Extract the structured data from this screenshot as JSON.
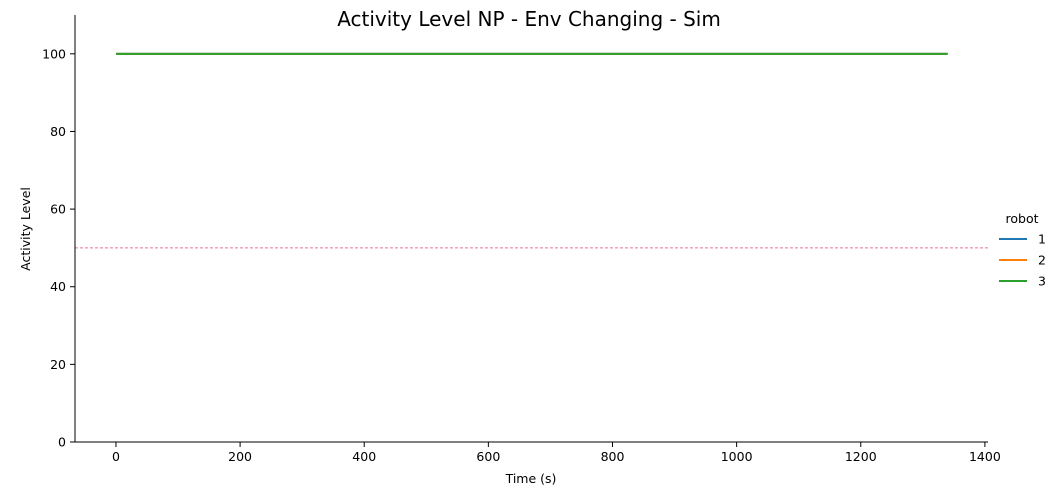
{
  "chart_data": {
    "type": "line",
    "title": "Activity Level NP - Env Changing - Sim",
    "xlabel": "Time (s)",
    "ylabel": "Activity Level",
    "xlim": [
      -66,
      1405
    ],
    "ylim": [
      0,
      110
    ],
    "xticks": [
      0,
      200,
      400,
      600,
      800,
      1000,
      1200,
      1400
    ],
    "yticks": [
      0,
      20,
      40,
      60,
      80,
      100
    ],
    "grid": false,
    "legend": {
      "title": "robot",
      "placement": "right"
    },
    "series": [
      {
        "name": "1",
        "color": "#1f77b4",
        "x": [
          0,
          1340
        ],
        "y": [
          100,
          100
        ]
      },
      {
        "name": "2",
        "color": "#ff7f0e",
        "x": [
          0,
          1340
        ],
        "y": [
          100,
          100
        ]
      },
      {
        "name": "3",
        "color": "#2ca02c",
        "x": [
          0,
          1340
        ],
        "y": [
          100,
          100
        ]
      }
    ],
    "reference_line": {
      "y": 50,
      "color": "#e8739a",
      "style": "dashed"
    }
  }
}
